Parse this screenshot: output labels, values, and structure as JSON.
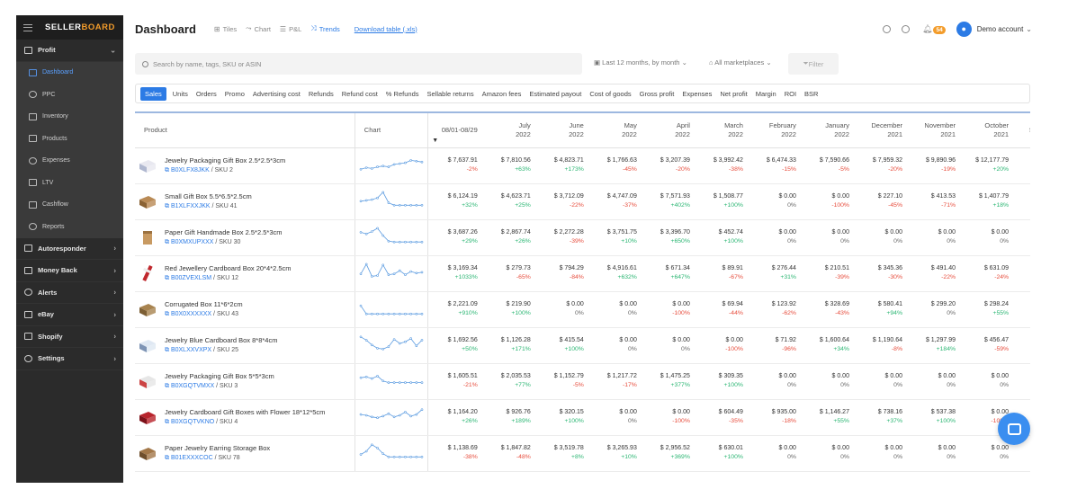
{
  "sidebar": {
    "logo_main": "SELLER",
    "logo_accent": "BOARD",
    "items": [
      {
        "label": "Profit",
        "type": "parent",
        "icon": "monitor-icon",
        "caret": "⌄"
      },
      {
        "label": "Dashboard",
        "type": "sub",
        "active": true,
        "icon": "dashboard-icon"
      },
      {
        "label": "PPC",
        "type": "sub",
        "icon": "ppc-icon"
      },
      {
        "label": "Inventory",
        "type": "sub",
        "icon": "inventory-icon"
      },
      {
        "label": "Products",
        "type": "sub",
        "icon": "products-icon"
      },
      {
        "label": "Expenses",
        "type": "sub",
        "icon": "expenses-icon"
      },
      {
        "label": "LTV",
        "type": "sub",
        "icon": "ltv-icon"
      },
      {
        "label": "Cashflow",
        "type": "sub",
        "icon": "cashflow-icon"
      },
      {
        "label": "Reports",
        "type": "sub",
        "icon": "reports-icon"
      },
      {
        "label": "Autoresponder",
        "type": "parent",
        "icon": "mail-icon",
        "caret": "›"
      },
      {
        "label": "Money Back",
        "type": "parent",
        "icon": "refresh-icon",
        "caret": "›"
      },
      {
        "label": "Alerts",
        "type": "parent",
        "icon": "bell-icon",
        "caret": "›"
      },
      {
        "label": "eBay",
        "type": "parent",
        "icon": "ebay-icon",
        "caret": "›"
      },
      {
        "label": "Shopify",
        "type": "parent",
        "icon": "shopify-icon",
        "caret": "›"
      },
      {
        "label": "Settings",
        "type": "parent",
        "icon": "gear-icon",
        "caret": "›"
      }
    ]
  },
  "header": {
    "title": "Dashboard",
    "view_tabs": [
      {
        "label": "Tiles",
        "icon": "⊞",
        "active": false
      },
      {
        "label": "Chart",
        "icon": "⤳",
        "active": false
      },
      {
        "label": "P&L",
        "icon": "☰",
        "active": false
      },
      {
        "label": "Trends",
        "icon": "⤨",
        "active": true
      }
    ],
    "download_label": "Download table (.xls)",
    "notification_count": "54",
    "account_name": "Demo account"
  },
  "filters": {
    "search_placeholder": "Search by name, tags, SKU or ASIN",
    "date_range": "Last 12 months, by month",
    "marketplaces": "All marketplaces",
    "filter_label": "Filter"
  },
  "metrics": [
    "Sales",
    "Units",
    "Orders",
    "Promo",
    "Advertising cost",
    "Refunds",
    "Refund cost",
    "% Refunds",
    "Sellable returns",
    "Amazon fees",
    "Estimated payout",
    "Cost of goods",
    "Gross profit",
    "Expenses",
    "Net profit",
    "Margin",
    "ROI",
    "BSR"
  ],
  "table": {
    "col_product": "Product",
    "col_chart": "Chart",
    "periods": [
      {
        "l1": "08/01-08/29",
        "l2": ""
      },
      {
        "l1": "July",
        "l2": "2022"
      },
      {
        "l1": "June",
        "l2": "2022"
      },
      {
        "l1": "May",
        "l2": "2022"
      },
      {
        "l1": "April",
        "l2": "2022"
      },
      {
        "l1": "March",
        "l2": "2022"
      },
      {
        "l1": "February",
        "l2": "2022"
      },
      {
        "l1": "January",
        "l2": "2022"
      },
      {
        "l1": "December",
        "l2": "2021"
      },
      {
        "l1": "November",
        "l2": "2021"
      },
      {
        "l1": "October",
        "l2": "2021"
      },
      {
        "l1": "Septer",
        "l2": ""
      }
    ],
    "rows": [
      {
        "name": "Jewelry Packaging Gift Box 2.5*2.5*3cm",
        "asin": "B0XLFX8JKK",
        "sku": "SKU 2",
        "thumb": "white-box",
        "spark": [
          0.15,
          0.25,
          0.2,
          0.3,
          0.35,
          0.3,
          0.45,
          0.5,
          0.55,
          0.7,
          0.65,
          0.6
        ],
        "cells": [
          [
            "$ 7,637.91",
            "-2%"
          ],
          [
            "$ 7,810.56",
            "+63%"
          ],
          [
            "$ 4,823.71",
            "+173%"
          ],
          [
            "$ 1,766.63",
            "-45%"
          ],
          [
            "$ 3,207.39",
            "-20%"
          ],
          [
            "$ 3,992.42",
            "-38%"
          ],
          [
            "$ 6,474.33",
            "-15%"
          ],
          [
            "$ 7,590.66",
            "-5%"
          ],
          [
            "$ 7,959.32",
            "-20%"
          ],
          [
            "$ 9,890.96",
            "-19%"
          ],
          [
            "$ 12,177.79",
            "+20%"
          ],
          [
            "$ 10,1",
            ""
          ]
        ]
      },
      {
        "name": "Small Gift Box 5.5*6.5*2.5cm",
        "asin": "B1XLFXXJKK",
        "sku": "SKU 41",
        "thumb": "kraft-box",
        "spark": [
          0.4,
          0.45,
          0.5,
          0.6,
          0.95,
          0.3,
          0.15,
          0.15,
          0.15,
          0.15,
          0.15,
          0.15
        ],
        "cells": [
          [
            "$ 6,124.19",
            "+32%"
          ],
          [
            "$ 4,623.71",
            "+25%"
          ],
          [
            "$ 3,712.09",
            "-22%"
          ],
          [
            "$ 4,747.09",
            "-37%"
          ],
          [
            "$ 7,571.93",
            "+402%"
          ],
          [
            "$ 1,508.77",
            "+100%"
          ],
          [
            "$ 0.00",
            "0%"
          ],
          [
            "$ 0.00",
            "-100%"
          ],
          [
            "$ 227.10",
            "-45%"
          ],
          [
            "$ 413.53",
            "-71%"
          ],
          [
            "$ 1,407.79",
            "+18%"
          ],
          [
            "$ 1,1",
            ""
          ]
        ]
      },
      {
        "name": "Paper Gift Handmade Box 2.5*2.5*3cm",
        "asin": "B0XMXUPXXX",
        "sku": "SKU 30",
        "thumb": "paper-box",
        "spark": [
          0.7,
          0.6,
          0.75,
          0.95,
          0.5,
          0.15,
          0.1,
          0.1,
          0.1,
          0.1,
          0.1,
          0.1
        ],
        "cells": [
          [
            "$ 3,687.26",
            "+29%"
          ],
          [
            "$ 2,867.74",
            "+26%"
          ],
          [
            "$ 2,272.28",
            "-39%"
          ],
          [
            "$ 3,751.75",
            "+10%"
          ],
          [
            "$ 3,396.70",
            "+650%"
          ],
          [
            "$ 452.74",
            "+100%"
          ],
          [
            "$ 0.00",
            "0%"
          ],
          [
            "$ 0.00",
            "0%"
          ],
          [
            "$ 0.00",
            "0%"
          ],
          [
            "$ 0.00",
            "0%"
          ],
          [
            "$ 0.00",
            "0%"
          ],
          [
            "$",
            ""
          ]
        ]
      },
      {
        "name": "Red Jewellery Cardboard Box 20*4*2.5cm",
        "asin": "B00ZVEXLSM",
        "sku": "SKU 12",
        "thumb": "red-box",
        "spark": [
          0.35,
          0.95,
          0.2,
          0.25,
          0.9,
          0.3,
          0.35,
          0.55,
          0.3,
          0.5,
          0.4,
          0.45
        ],
        "cells": [
          [
            "$ 3,169.34",
            "+1033%"
          ],
          [
            "$ 279.73",
            "-65%"
          ],
          [
            "$ 794.29",
            "-84%"
          ],
          [
            "$ 4,916.61",
            "+632%"
          ],
          [
            "$ 671.34",
            "+647%"
          ],
          [
            "$ 89.91",
            "-67%"
          ],
          [
            "$ 276.44",
            "+31%"
          ],
          [
            "$ 210.51",
            "-39%"
          ],
          [
            "$ 345.36",
            "-30%"
          ],
          [
            "$ 491.40",
            "-22%"
          ],
          [
            "$ 631.09",
            "-24%"
          ],
          [
            "$ 8",
            ""
          ]
        ]
      },
      {
        "name": "Corrugated Box 11*6*2cm",
        "asin": "B0X0XXXXXX",
        "sku": "SKU 43",
        "thumb": "corrugated-box",
        "spark": [
          0.6,
          0.1,
          0.1,
          0.1,
          0.1,
          0.1,
          0.1,
          0.1,
          0.1,
          0.1,
          0.1,
          0.1
        ],
        "cells": [
          [
            "$ 2,221.09",
            "+910%"
          ],
          [
            "$ 219.90",
            "+100%"
          ],
          [
            "$ 0.00",
            "0%"
          ],
          [
            "$ 0.00",
            "0%"
          ],
          [
            "$ 0.00",
            "-100%"
          ],
          [
            "$ 69.94",
            "-44%"
          ],
          [
            "$ 123.92",
            "-62%"
          ],
          [
            "$ 328.69",
            "-43%"
          ],
          [
            "$ 580.41",
            "+94%"
          ],
          [
            "$ 299.20",
            "0%"
          ],
          [
            "$ 298.24",
            "+55%"
          ],
          [
            "$ 1",
            ""
          ]
        ]
      },
      {
        "name": "Jewelry Blue Cardboard Box 8*8*4cm",
        "asin": "B0XLXXVXPX",
        "sku": "SKU 25",
        "thumb": "blue-box",
        "spark": [
          0.9,
          0.7,
          0.4,
          0.2,
          0.15,
          0.3,
          0.75,
          0.5,
          0.6,
          0.8,
          0.35,
          0.7
        ],
        "cells": [
          [
            "$ 1,692.56",
            "+50%"
          ],
          [
            "$ 1,126.28",
            "+171%"
          ],
          [
            "$ 415.54",
            "+100%"
          ],
          [
            "$ 0.00",
            "0%"
          ],
          [
            "$ 0.00",
            "0%"
          ],
          [
            "$ 0.00",
            "-100%"
          ],
          [
            "$ 71.92",
            "-96%"
          ],
          [
            "$ 1,600.64",
            "+34%"
          ],
          [
            "$ 1,190.64",
            "-8%"
          ],
          [
            "$ 1,297.99",
            "+184%"
          ],
          [
            "$ 456.47",
            "-59%"
          ],
          [
            "$ 1,1",
            ""
          ]
        ]
      },
      {
        "name": "Jewelry Packaging Gift Box 5*5*3cm",
        "asin": "B0XGQTVMXX",
        "sku": "SKU 3",
        "thumb": "striped-box",
        "spark": [
          0.6,
          0.65,
          0.55,
          0.7,
          0.4,
          0.3,
          0.3,
          0.3,
          0.3,
          0.3,
          0.3,
          0.3
        ],
        "cells": [
          [
            "$ 1,605.51",
            "-21%"
          ],
          [
            "$ 2,035.53",
            "+77%"
          ],
          [
            "$ 1,152.79",
            "-5%"
          ],
          [
            "$ 1,217.72",
            "-17%"
          ],
          [
            "$ 1,475.25",
            "+377%"
          ],
          [
            "$ 309.35",
            "+100%"
          ],
          [
            "$ 0.00",
            "0%"
          ],
          [
            "$ 0.00",
            "0%"
          ],
          [
            "$ 0.00",
            "0%"
          ],
          [
            "$ 0.00",
            "0%"
          ],
          [
            "$ 0.00",
            "0%"
          ],
          [
            "$",
            ""
          ]
        ]
      },
      {
        "name": "Jewelry Cardboard Gift Boxes with Flower 18*12*5cm",
        "asin": "B0XGQTVKNO",
        "sku": "SKU 4",
        "thumb": "flower-box",
        "spark": [
          0.55,
          0.5,
          0.4,
          0.35,
          0.45,
          0.6,
          0.4,
          0.5,
          0.7,
          0.45,
          0.55,
          0.85
        ],
        "cells": [
          [
            "$ 1,164.20",
            "+26%"
          ],
          [
            "$ 926.76",
            "+189%"
          ],
          [
            "$ 320.15",
            "+100%"
          ],
          [
            "$ 0.00",
            "0%"
          ],
          [
            "$ 0.00",
            "-100%"
          ],
          [
            "$ 604.49",
            "-35%"
          ],
          [
            "$ 935.00",
            "-18%"
          ],
          [
            "$ 1,146.27",
            "+55%"
          ],
          [
            "$ 738.16",
            "+37%"
          ],
          [
            "$ 537.38",
            "+100%"
          ],
          [
            "$ 0.00",
            "-100%"
          ],
          [
            "$ 5",
            ""
          ]
        ]
      },
      {
        "name": "Paper Jewelry Earring Storage Box",
        "asin": "B01EXXXCOC",
        "sku": "SKU 78",
        "thumb": "brown-box",
        "spark": [
          0.3,
          0.5,
          0.9,
          0.7,
          0.35,
          0.15,
          0.15,
          0.15,
          0.15,
          0.15,
          0.15,
          0.15
        ],
        "cells": [
          [
            "$ 1,138.69",
            "-38%"
          ],
          [
            "$ 1,847.82",
            "-48%"
          ],
          [
            "$ 3,519.78",
            "+8%"
          ],
          [
            "$ 3,265.93",
            "+10%"
          ],
          [
            "$ 2,956.52",
            "+369%"
          ],
          [
            "$ 630.01",
            "+100%"
          ],
          [
            "$ 0.00",
            "0%"
          ],
          [
            "$ 0.00",
            "0%"
          ],
          [
            "$ 0.00",
            "0%"
          ],
          [
            "$ 0.00",
            "0%"
          ],
          [
            "$ 0.00",
            "0%"
          ],
          [
            "$",
            ""
          ]
        ]
      }
    ]
  },
  "colors": {
    "accent": "#2c7be5",
    "positive": "#2bb673",
    "negative": "#e74c3c",
    "sidebar": "#2b2b2b",
    "badge": "#f39c2b"
  }
}
